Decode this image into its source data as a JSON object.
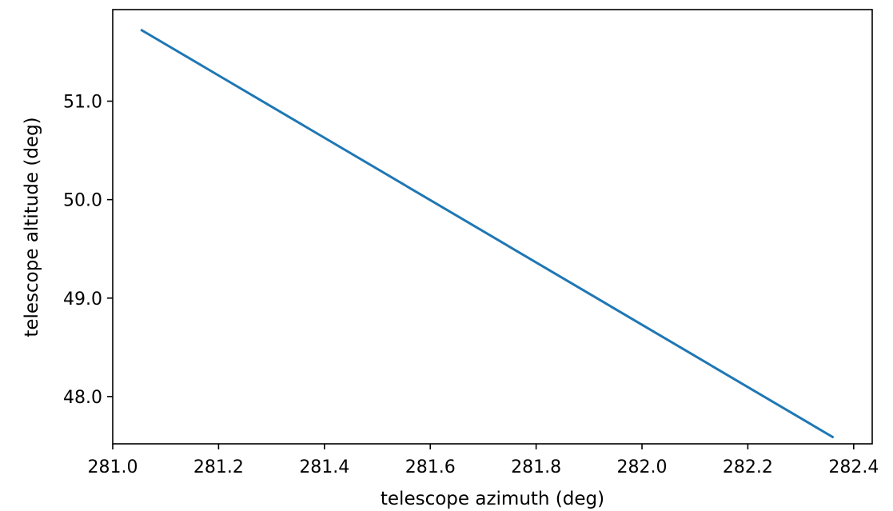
{
  "chart_data": {
    "type": "line",
    "title": "",
    "xlabel": "telescope azimuth (deg)",
    "ylabel": "telescope altitude (deg)",
    "xlim": [
      281.0,
      282.435
    ],
    "ylim": [
      47.52,
      51.93
    ],
    "xticks": [
      281.0,
      281.2,
      281.4,
      281.6,
      281.8,
      282.0,
      282.2,
      282.4
    ],
    "xtick_labels": [
      "281.0",
      "281.2",
      "281.4",
      "281.6",
      "281.8",
      "282.0",
      "282.2",
      "282.4"
    ],
    "yticks": [
      48.0,
      49.0,
      50.0,
      51.0
    ],
    "ytick_labels": [
      "48.0",
      "49.0",
      "50.0",
      "51.0"
    ],
    "grid": false,
    "legend": "none",
    "series": [
      {
        "color": "#1f77b4",
        "x": [
          281.055,
          282.36
        ],
        "y": [
          51.72,
          47.59
        ]
      }
    ]
  }
}
